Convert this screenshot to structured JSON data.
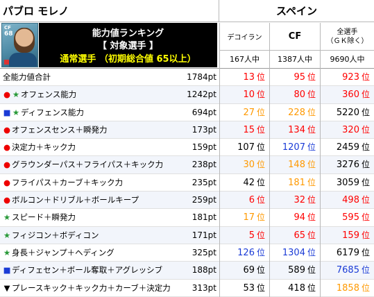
{
  "header": {
    "player_name": "パブロ モレノ",
    "country": "スペイン",
    "card": {
      "position": "CF",
      "overall": "68"
    },
    "banner": {
      "line1": "能力値ランキング",
      "line2": "【 対象選手 】",
      "line3": "通常選手 （初期総合値 65以上）"
    },
    "columns": [
      {
        "title": "デコイラン",
        "count": "167人中"
      },
      {
        "title": "CF",
        "count": "1387人中"
      },
      {
        "title_line1": "全選手",
        "title_line2": "（ＧＫ除く）",
        "count": "9690人中"
      }
    ]
  },
  "rank_unit": "位",
  "colors": {
    "top": "#ff0000",
    "orange": "#ff9900",
    "blue": "#1a3bd6",
    "black": "#000000"
  },
  "rows": [
    {
      "marker": "",
      "marker_color": "",
      "label": "全能力値合計",
      "points": "1784pt",
      "ranks": [
        {
          "v": "13",
          "c": "top"
        },
        {
          "v": "95",
          "c": "top"
        },
        {
          "v": "923",
          "c": "top"
        }
      ]
    },
    {
      "marker": "●★",
      "marker_color": "red-green",
      "label": "オフェンス能力",
      "points": "1242pt",
      "ranks": [
        {
          "v": "10",
          "c": "top"
        },
        {
          "v": "80",
          "c": "top"
        },
        {
          "v": "360",
          "c": "top"
        }
      ]
    },
    {
      "marker": "■★",
      "marker_color": "blue-green",
      "label": "ディフェンス能力",
      "points": "694pt",
      "ranks": [
        {
          "v": "27",
          "c": "orange"
        },
        {
          "v": "228",
          "c": "orange"
        },
        {
          "v": "5220",
          "c": "black"
        }
      ]
    },
    {
      "marker": "●",
      "marker_color": "red",
      "label": "オフェンスセンス＋瞬発力",
      "points": "173pt",
      "ranks": [
        {
          "v": "15",
          "c": "top"
        },
        {
          "v": "134",
          "c": "top"
        },
        {
          "v": "320",
          "c": "top"
        }
      ]
    },
    {
      "marker": "●",
      "marker_color": "red",
      "label": "決定力＋キック力",
      "points": "159pt",
      "ranks": [
        {
          "v": "107",
          "c": "black"
        },
        {
          "v": "1207",
          "c": "blue"
        },
        {
          "v": "2459",
          "c": "black"
        }
      ]
    },
    {
      "marker": "●",
      "marker_color": "red",
      "label": "グラウンダーパス＋フライパス＋キック力",
      "points": "238pt",
      "ranks": [
        {
          "v": "30",
          "c": "orange"
        },
        {
          "v": "148",
          "c": "orange"
        },
        {
          "v": "3276",
          "c": "black"
        }
      ]
    },
    {
      "marker": "●",
      "marker_color": "red",
      "label": "フライパス＋カーブ＋キック力",
      "points": "235pt",
      "ranks": [
        {
          "v": "42",
          "c": "black"
        },
        {
          "v": "181",
          "c": "orange"
        },
        {
          "v": "3059",
          "c": "black"
        }
      ]
    },
    {
      "marker": "●",
      "marker_color": "red",
      "label": "ボルコン＋ドリブル＋ボールキープ",
      "points": "259pt",
      "ranks": [
        {
          "v": "6",
          "c": "top"
        },
        {
          "v": "32",
          "c": "top"
        },
        {
          "v": "498",
          "c": "top"
        }
      ]
    },
    {
      "marker": "★",
      "marker_color": "green",
      "label": "スピード＋瞬発力",
      "points": "181pt",
      "ranks": [
        {
          "v": "17",
          "c": "orange"
        },
        {
          "v": "94",
          "c": "top"
        },
        {
          "v": "595",
          "c": "top"
        }
      ]
    },
    {
      "marker": "★",
      "marker_color": "green",
      "label": "フィジコン＋ボディコン",
      "points": "171pt",
      "ranks": [
        {
          "v": "5",
          "c": "top"
        },
        {
          "v": "65",
          "c": "top"
        },
        {
          "v": "159",
          "c": "top"
        }
      ]
    },
    {
      "marker": "★",
      "marker_color": "green",
      "label": "身長＋ジャンプ＋ヘディング",
      "points": "325pt",
      "ranks": [
        {
          "v": "126",
          "c": "blue"
        },
        {
          "v": "1304",
          "c": "blue"
        },
        {
          "v": "6179",
          "c": "black"
        }
      ]
    },
    {
      "marker": "■",
      "marker_color": "blue",
      "label": "ディフェセン＋ボール奪取＋アグレッシブ",
      "points": "188pt",
      "ranks": [
        {
          "v": "69",
          "c": "black"
        },
        {
          "v": "589",
          "c": "black"
        },
        {
          "v": "7685",
          "c": "blue"
        }
      ]
    },
    {
      "marker": "▼",
      "marker_color": "black",
      "label": "プレースキック＋キック力＋カーブ＋決定力",
      "points": "313pt",
      "ranks": [
        {
          "v": "53",
          "c": "black"
        },
        {
          "v": "418",
          "c": "black"
        },
        {
          "v": "1858",
          "c": "orange"
        }
      ]
    }
  ]
}
